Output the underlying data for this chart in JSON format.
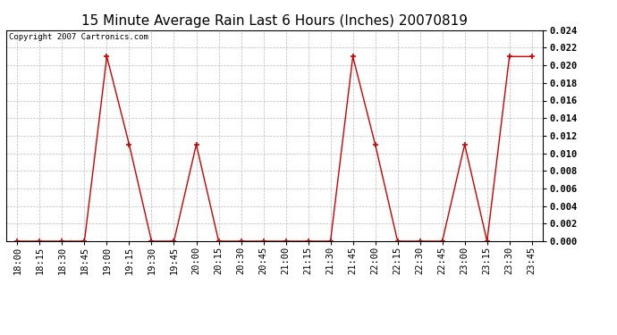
{
  "title": "15 Minute Average Rain Last 6 Hours (Inches) 20070819",
  "copyright": "Copyright 2007 Cartronics.com",
  "x_labels": [
    "18:00",
    "18:15",
    "18:30",
    "18:45",
    "19:00",
    "19:15",
    "19:30",
    "19:45",
    "20:00",
    "20:15",
    "20:30",
    "20:45",
    "21:00",
    "21:15",
    "21:30",
    "21:45",
    "22:00",
    "22:15",
    "22:30",
    "22:45",
    "23:00",
    "23:15",
    "23:30",
    "23:45"
  ],
  "y_values": [
    0.0,
    0.0,
    0.0,
    0.0,
    0.021,
    0.011,
    0.0,
    0.0,
    0.011,
    0.0,
    0.0,
    0.0,
    0.0,
    0.0,
    0.0,
    0.021,
    0.011,
    0.0,
    0.0,
    0.0,
    0.011,
    0.0,
    0.021,
    0.021
  ],
  "y_min": 0.0,
  "y_max": 0.024,
  "y_tick_step": 0.002,
  "line_color": "#cc0000",
  "marker": "+",
  "marker_size": 5,
  "background_color": "#ffffff",
  "grid_color": "#bbbbbb",
  "title_fontsize": 11,
  "tick_fontsize": 7.5,
  "copyright_fontsize": 6.5
}
